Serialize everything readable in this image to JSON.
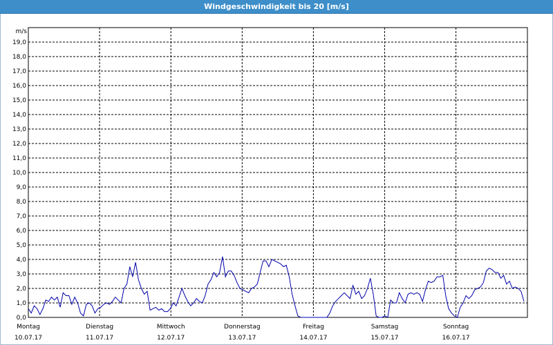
{
  "window": {
    "title": "Windgeschwindigkeit bis 20 [m/s]"
  },
  "chart_data": {
    "type": "line",
    "title": "Windgeschwindigkeit bis 20 [m/s]",
    "ylabel": "m/s",
    "xlabel": "",
    "ylim": [
      0,
      20
    ],
    "yticks": [
      "0,0",
      "1,0",
      "2,0",
      "3,0",
      "4,0",
      "5,0",
      "6,0",
      "7,0",
      "8,0",
      "9,0",
      "10,0",
      "11,0",
      "12,0",
      "13,0",
      "14,0",
      "15,0",
      "16,0",
      "17,0",
      "18,0",
      "19,0"
    ],
    "days": [
      {
        "name": "Montag",
        "date": "10.07.17"
      },
      {
        "name": "Dienstag",
        "date": "11.07.17"
      },
      {
        "name": "Mittwoch",
        "date": "12.07.17"
      },
      {
        "name": "Donnerstag",
        "date": "13.07.17"
      },
      {
        "name": "Freitag",
        "date": "14.07.17"
      },
      {
        "name": "Samstag",
        "date": "15.07.17"
      },
      {
        "name": "Sonntag",
        "date": "16.07.17"
      }
    ],
    "grid": true,
    "line_color": "#0000aa",
    "series": [
      {
        "values": [
          0.6,
          0.3,
          0.8,
          0.6,
          0.2,
          0.6,
          1.2,
          1.1,
          1.4,
          1.2,
          1.4,
          0.7,
          1.7,
          1.5,
          1.5,
          0.9,
          1.4,
          1.0,
          0.3,
          0.1,
          0.9,
          1.0,
          0.8,
          0.3,
          0.6,
          0.7,
          0.9,
          1.0,
          0.9,
          1.1,
          1.4,
          1.2,
          1.0,
          2.0,
          2.3,
          3.5,
          2.8,
          3.8,
          2.6,
          2.0,
          1.6,
          1.8,
          0.5,
          0.6,
          0.7,
          0.5,
          0.6,
          0.4,
          0.4,
          0.6,
          1.0,
          0.8,
          1.4,
          2.0,
          1.5,
          1.1,
          0.8,
          1.0,
          1.3,
          1.1,
          1.0,
          1.5,
          2.3,
          2.6,
          3.1,
          2.8,
          3.1,
          4.2,
          2.8,
          3.2,
          3.2,
          2.9,
          2.4,
          2.0,
          1.9,
          1.8,
          1.7,
          2.0,
          2.1,
          2.3,
          3.1,
          3.9,
          3.9,
          3.5,
          4.0,
          3.9,
          3.8,
          3.7,
          3.5,
          3.6,
          2.8,
          1.6,
          0.8,
          0.1,
          0.0,
          0.0,
          0.0,
          0.0,
          0.0,
          0.0,
          0.0,
          0.0,
          0.0,
          0.0,
          0.3,
          0.8,
          1.1,
          1.3,
          1.5,
          1.7,
          1.5,
          1.3,
          2.2,
          1.6,
          1.8,
          1.3,
          1.5,
          2.0,
          2.7,
          1.6,
          0.1,
          0.0,
          0.0,
          0.1,
          0.0,
          1.2,
          1.0,
          1.0,
          1.7,
          1.3,
          1.0,
          1.6,
          1.7,
          1.6,
          1.7,
          1.6,
          1.1,
          1.9,
          2.5,
          2.4,
          2.5,
          2.8,
          2.8,
          2.9,
          1.5,
          0.6,
          0.3,
          0.1,
          0.0,
          0.7,
          1.0,
          1.5,
          1.3,
          1.5,
          1.9,
          2.0,
          2.1,
          2.4,
          3.2,
          3.4,
          3.3,
          3.1,
          3.1,
          2.7,
          2.9,
          2.3,
          2.5,
          2.0,
          2.1,
          2.0,
          1.8,
          1.1
        ]
      }
    ]
  }
}
